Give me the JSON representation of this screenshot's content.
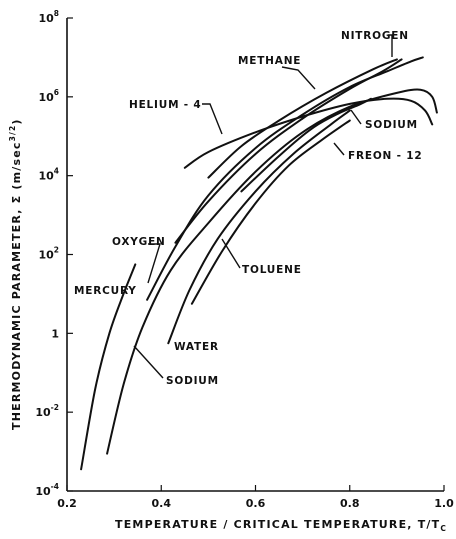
{
  "chart_data": {
    "type": "line",
    "xlabel": "TEMPERATURE / CRITICAL  TEMPERATURE, T/T",
    "xlabel_sub": "C",
    "ylabel": "THERMODYNAMIC  PARAMETER,  Σ  (m/sec",
    "ylabel_exp": "3/2",
    "ylabel_close": ")",
    "xlim": [
      0.2,
      1.0
    ],
    "ylim_log10": [
      -4,
      8
    ],
    "y_scale": "log",
    "x_ticks": [
      {
        "value": 0.2,
        "label": "0.2"
      },
      {
        "value": 0.4,
        "label": "0.4"
      },
      {
        "value": 0.6,
        "label": "0.6"
      },
      {
        "value": 0.8,
        "label": "0.8"
      },
      {
        "value": 1.0,
        "label": "1.0"
      }
    ],
    "y_ticks": [
      {
        "log10": -4,
        "base": "10",
        "exp": "-4"
      },
      {
        "log10": -2,
        "base": "10",
        "exp": "-2"
      },
      {
        "log10": 0,
        "base": "1",
        "exp": ""
      },
      {
        "log10": 2,
        "base": "10",
        "exp": "2"
      },
      {
        "log10": 4,
        "base": "10",
        "exp": "4"
      },
      {
        "log10": 6,
        "base": "10",
        "exp": "6"
      },
      {
        "log10": 8,
        "base": "10",
        "exp": "8"
      }
    ],
    "series": [
      {
        "name": "MERCURY",
        "points": [
          [
            0.23,
            -3.45
          ],
          [
            0.26,
            -1.4
          ],
          [
            0.29,
            0.0
          ],
          [
            0.32,
            1.0
          ],
          [
            0.345,
            1.75
          ]
        ]
      },
      {
        "name": "SODIUM",
        "points": [
          [
            0.285,
            -3.05
          ],
          [
            0.32,
            -1.3
          ],
          [
            0.36,
            0.15
          ],
          [
            0.42,
            1.6
          ],
          [
            0.5,
            2.8
          ],
          [
            0.6,
            4.1
          ],
          [
            0.7,
            5.1
          ],
          [
            0.8,
            5.75
          ],
          [
            0.9,
            6.1
          ],
          [
            0.95,
            6.18
          ],
          [
            0.975,
            6.0
          ],
          [
            0.985,
            5.6
          ]
        ]
      },
      {
        "name": "OXYGEN",
        "points": [
          [
            0.37,
            0.85
          ],
          [
            0.43,
            2.2
          ],
          [
            0.5,
            3.5
          ],
          [
            0.6,
            4.7
          ],
          [
            0.7,
            5.55
          ],
          [
            0.8,
            6.25
          ],
          [
            0.88,
            6.65
          ],
          [
            0.93,
            6.9
          ],
          [
            0.955,
            7.0
          ]
        ]
      },
      {
        "name": "NITROGEN",
        "points": [
          [
            0.43,
            2.3
          ],
          [
            0.5,
            3.35
          ],
          [
            0.6,
            4.55
          ],
          [
            0.7,
            5.45
          ],
          [
            0.8,
            6.2
          ],
          [
            0.87,
            6.65
          ],
          [
            0.91,
            6.95
          ]
        ]
      },
      {
        "name": "METHANE",
        "points": [
          [
            0.5,
            3.95
          ],
          [
            0.57,
            4.75
          ],
          [
            0.65,
            5.4
          ],
          [
            0.75,
            6.1
          ],
          [
            0.85,
            6.7
          ],
          [
            0.9,
            6.95
          ]
        ]
      },
      {
        "name": "HELIUM-4",
        "points": [
          [
            0.45,
            4.2
          ],
          [
            0.5,
            4.6
          ],
          [
            0.6,
            5.1
          ],
          [
            0.7,
            5.5
          ],
          [
            0.8,
            5.82
          ],
          [
            0.88,
            5.95
          ],
          [
            0.93,
            5.9
          ],
          [
            0.96,
            5.65
          ],
          [
            0.975,
            5.3
          ]
        ]
      },
      {
        "name": "FREON-12",
        "points": [
          [
            0.57,
            3.6
          ],
          [
            0.65,
            4.5
          ],
          [
            0.72,
            5.2
          ],
          [
            0.78,
            5.6
          ],
          [
            0.82,
            5.8
          ],
          [
            0.845,
            5.95
          ]
        ]
      },
      {
        "name": "TOLUENE",
        "points": [
          [
            0.465,
            0.75
          ],
          [
            0.53,
            2.1
          ],
          [
            0.6,
            3.3
          ],
          [
            0.67,
            4.25
          ],
          [
            0.74,
            4.9
          ],
          [
            0.8,
            5.4
          ]
        ]
      },
      {
        "name": "WATER",
        "points": [
          [
            0.415,
            -0.25
          ],
          [
            0.46,
            1.1
          ],
          [
            0.52,
            2.4
          ],
          [
            0.6,
            3.6
          ],
          [
            0.68,
            4.55
          ],
          [
            0.76,
            5.3
          ],
          [
            0.8,
            5.65
          ]
        ]
      }
    ],
    "annotations": [
      {
        "label": "MERCURY"
      },
      {
        "label": "SODIUM"
      },
      {
        "label": "OXYGEN"
      },
      {
        "label": "WATER"
      },
      {
        "label": "TOLUENE"
      },
      {
        "label": "HELIUM - 4"
      },
      {
        "label": "METHANE"
      },
      {
        "label": "NITROGEN"
      },
      {
        "label": "SODIUM"
      },
      {
        "label": "FREON - 12"
      }
    ]
  }
}
